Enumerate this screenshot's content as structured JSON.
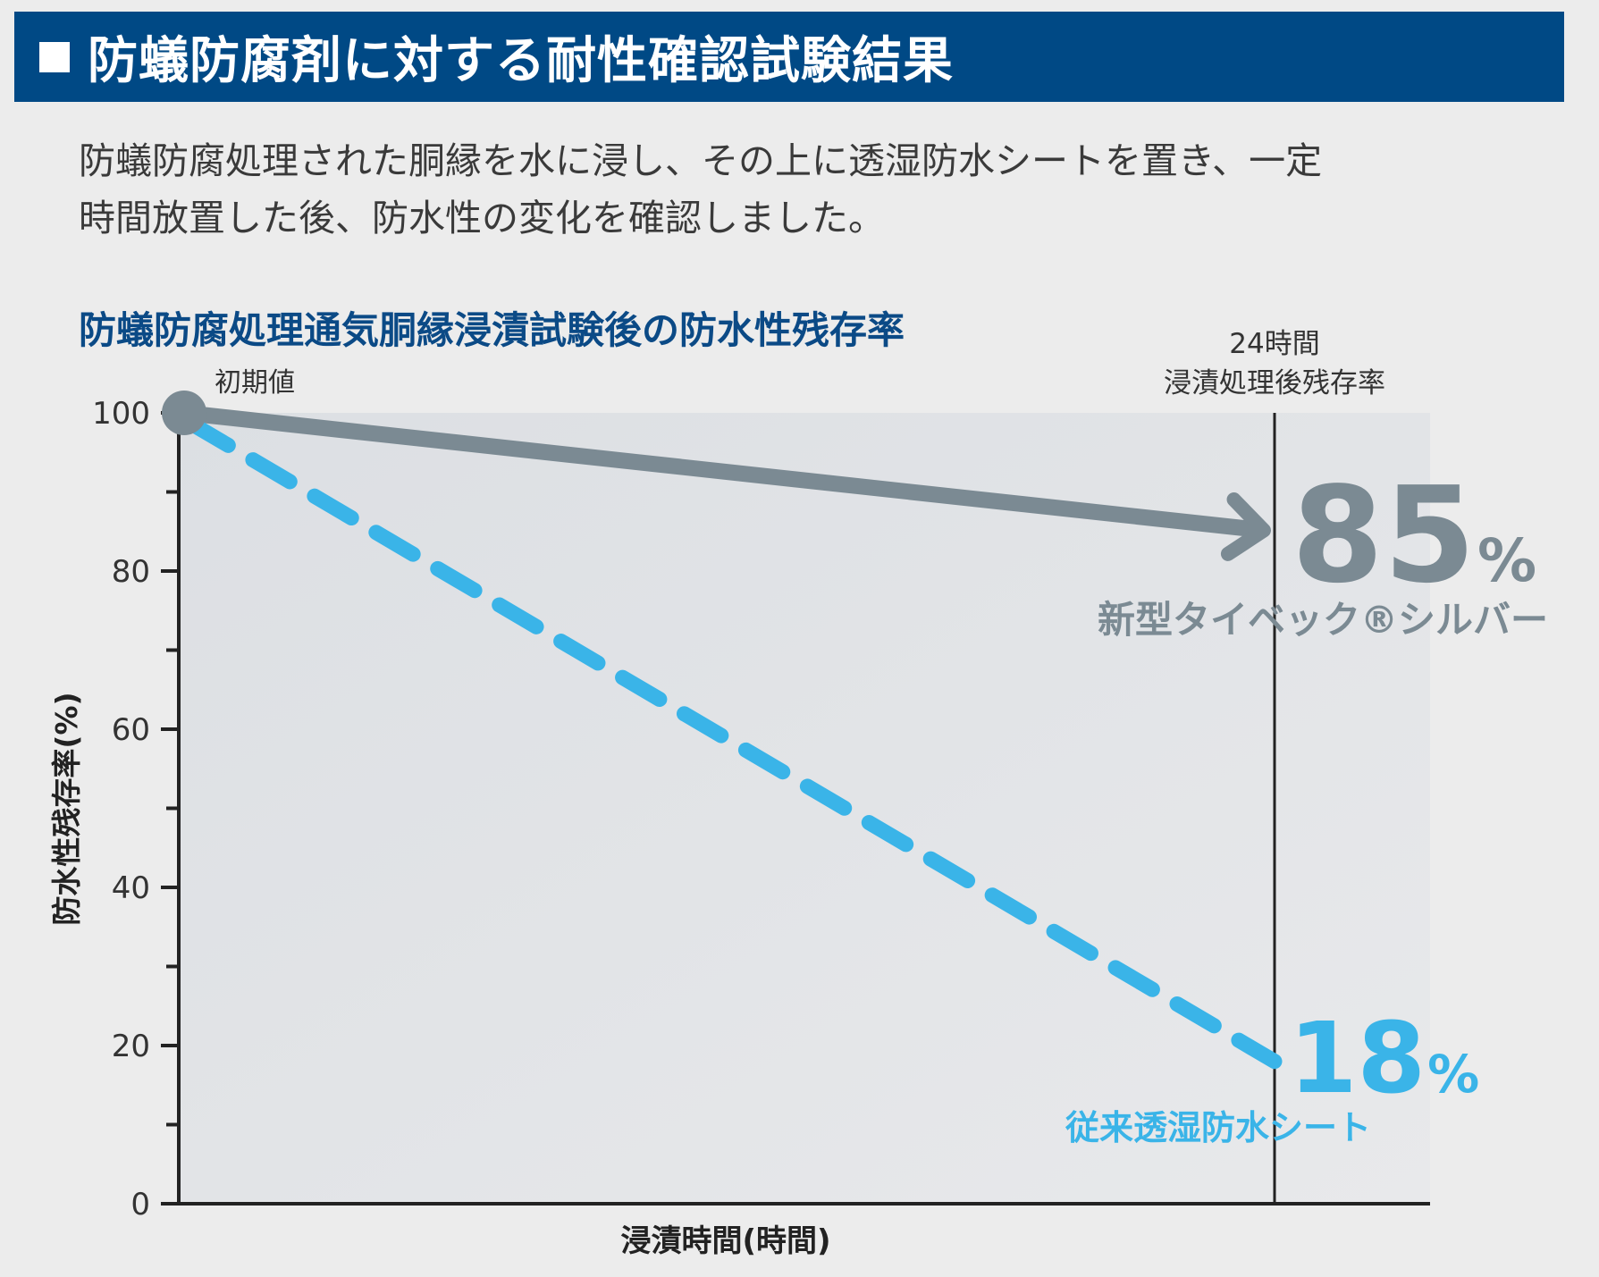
{
  "header": {
    "title": "防蟻防腐剤に対する耐性確認試験結果"
  },
  "intro": {
    "line1": "防蟻防腐処理された胴縁を水に浸し、その上に透湿防水シートを置き、一定",
    "line2": "時間放置した後、防水性の変化を確認しました。"
  },
  "chart_data": {
    "type": "line",
    "title": "防蟻防腐処理通気胴縁浸漬試験後の防水性残存率",
    "xlabel": "浸漬時間(時間)",
    "ylabel": "防水性残存率(%)",
    "ylim": [
      0,
      100
    ],
    "yticks": [
      "100",
      "80",
      "60",
      "40",
      "20",
      "0"
    ],
    "x": [
      0,
      24
    ],
    "start_label": "初期値",
    "marker_label_line1": "24時間",
    "marker_label_line2": "浸漬処理後残存率",
    "series": [
      {
        "name": "新型タイベック®シルバー",
        "values": [
          100,
          85
        ],
        "value_label": "85",
        "unit_label": "%",
        "color": "#7b8a93",
        "style": "solid-arrow"
      },
      {
        "name": "従来透湿防水シート",
        "values": [
          100,
          18
        ],
        "value_label": "18",
        "unit_label": "%",
        "color": "#3ab4e8",
        "style": "dashed"
      }
    ],
    "grid": false,
    "legend": "none"
  }
}
